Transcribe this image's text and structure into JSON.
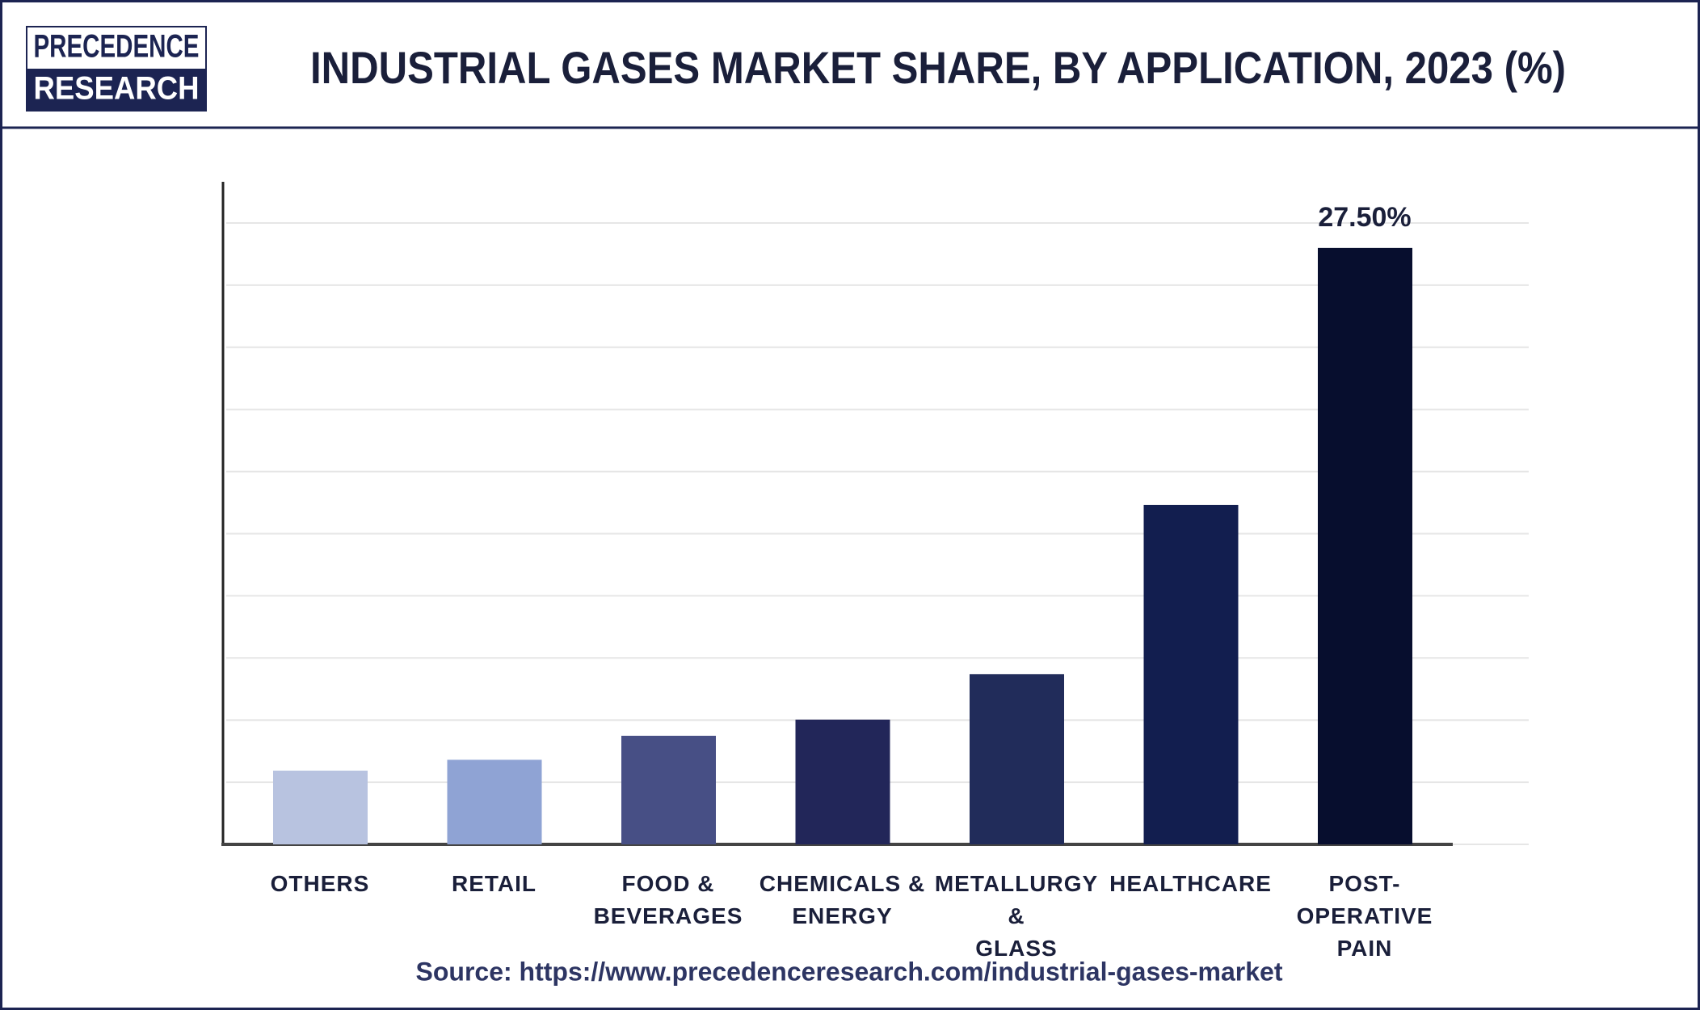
{
  "logo": {
    "top": "PRECEDENCE",
    "bottom": "RESEARCH"
  },
  "chart_data": {
    "type": "bar",
    "title": "INDUSTRIAL GASES MARKET SHARE, BY APPLICATION, 2023 (%)",
    "categories": [
      "OTHERS",
      "RETAIL",
      "FOOD & BEVERAGES",
      "CHEMICALS &\nENERGY",
      "METALLURGY &\nGLASS",
      "HEALTHCARE",
      "POST-OPERATIVE\nPAIN"
    ],
    "values": [
      3.4,
      3.9,
      5.0,
      5.75,
      7.85,
      15.65,
      27.5
    ],
    "value_labels": [
      null,
      null,
      null,
      null,
      null,
      null,
      "27.50%"
    ],
    "colors": [
      "#b8c3e0",
      "#8fa3d4",
      "#474f85",
      "#222659",
      "#212c5a",
      "#121e4f",
      "#070e2e"
    ],
    "ylim": [
      0,
      30.55
    ],
    "yticks": [
      0,
      2.865,
      5.73,
      8.595,
      11.46,
      14.325,
      17.19,
      20.055,
      22.92,
      25.785,
      28.65
    ],
    "grid": true,
    "source": "Source: https://www.precedenceresearch.com/industrial-gases-market"
  }
}
